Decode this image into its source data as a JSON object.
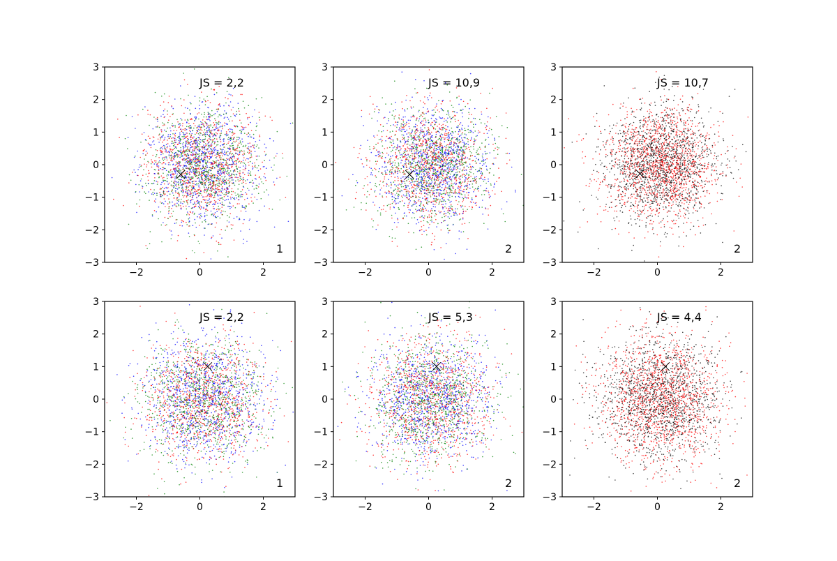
{
  "figure": {
    "rows": 2,
    "cols": 3,
    "background": "#ffffff"
  },
  "styles": {
    "colors": {
      "red": "#ff0000",
      "green": "#008000",
      "blue": "#0000ff",
      "black": "#000000"
    },
    "marker_center": "x",
    "marker_center_color": "#000000"
  },
  "chart_data": [
    {
      "type": "scatter",
      "title": "",
      "xlabel": "",
      "ylabel": "",
      "xlim": [
        -3,
        3
      ],
      "ylim": [
        -3,
        3
      ],
      "xticks": [
        -2,
        0,
        2
      ],
      "yticks": [
        -3,
        -2,
        -1,
        0,
        1,
        2,
        3
      ],
      "grid": false,
      "annotation": "JS = 2,2",
      "corner_label": "1",
      "center": [
        -0.6,
        -0.3
      ],
      "point_distribution": "gaussian",
      "point_spread_sd": 0.9,
      "series_colors": [
        "red",
        "green",
        "blue"
      ]
    },
    {
      "type": "scatter",
      "title": "",
      "xlabel": "",
      "ylabel": "",
      "xlim": [
        -3,
        3
      ],
      "ylim": [
        -3,
        3
      ],
      "xticks": [
        -2,
        0,
        2
      ],
      "yticks": [
        -3,
        -2,
        -1,
        0,
        1,
        2,
        3
      ],
      "grid": false,
      "annotation": "JS = 10,9",
      "corner_label": "2",
      "center": [
        -0.6,
        -0.3
      ],
      "point_distribution": "gaussian",
      "point_spread_sd": 0.9,
      "series_colors": [
        "red",
        "green",
        "blue"
      ]
    },
    {
      "type": "scatter",
      "title": "",
      "xlabel": "",
      "ylabel": "",
      "xlim": [
        -3,
        3
      ],
      "ylim": [
        -3,
        3
      ],
      "xticks": [
        -2,
        0,
        2
      ],
      "yticks": [
        -3,
        -2,
        -1,
        0,
        1,
        2,
        3
      ],
      "grid": false,
      "annotation": "JS = 10,7",
      "corner_label": "2",
      "center": [
        -0.55,
        -0.28
      ],
      "point_distribution": "gaussian",
      "point_spread_sd": 0.9,
      "series_colors": [
        "red",
        "black"
      ]
    },
    {
      "type": "scatter",
      "title": "",
      "xlabel": "",
      "ylabel": "",
      "xlim": [
        -3,
        3
      ],
      "ylim": [
        -3,
        3
      ],
      "xticks": [
        -2,
        0,
        2
      ],
      "yticks": [
        -3,
        -2,
        -1,
        0,
        1,
        2,
        3
      ],
      "grid": false,
      "annotation": "JS = 2,2",
      "corner_label": "1",
      "center": [
        0.25,
        1.0
      ],
      "point_distribution": "gaussian",
      "point_spread_sd": 0.95,
      "series_colors": [
        "red",
        "green",
        "blue"
      ]
    },
    {
      "type": "scatter",
      "title": "",
      "xlabel": "",
      "ylabel": "",
      "xlim": [
        -3,
        3
      ],
      "ylim": [
        -3,
        3
      ],
      "xticks": [
        -2,
        0,
        2
      ],
      "yticks": [
        -3,
        -2,
        -1,
        0,
        1,
        2,
        3
      ],
      "grid": false,
      "annotation": "JS = 5,3",
      "corner_label": "2",
      "center": [
        0.25,
        1.0
      ],
      "point_distribution": "gaussian",
      "point_spread_sd": 0.95,
      "series_colors": [
        "red",
        "green",
        "blue"
      ]
    },
    {
      "type": "scatter",
      "title": "",
      "xlabel": "",
      "ylabel": "",
      "xlim": [
        -3,
        3
      ],
      "ylim": [
        -3,
        3
      ],
      "xticks": [
        -2,
        0,
        2
      ],
      "yticks": [
        -3,
        -2,
        -1,
        0,
        1,
        2,
        3
      ],
      "grid": false,
      "annotation": "JS = 4,4",
      "corner_label": "2",
      "center": [
        0.25,
        1.0
      ],
      "point_distribution": "gaussian",
      "point_spread_sd": 0.95,
      "series_colors": [
        "red",
        "black"
      ]
    }
  ]
}
